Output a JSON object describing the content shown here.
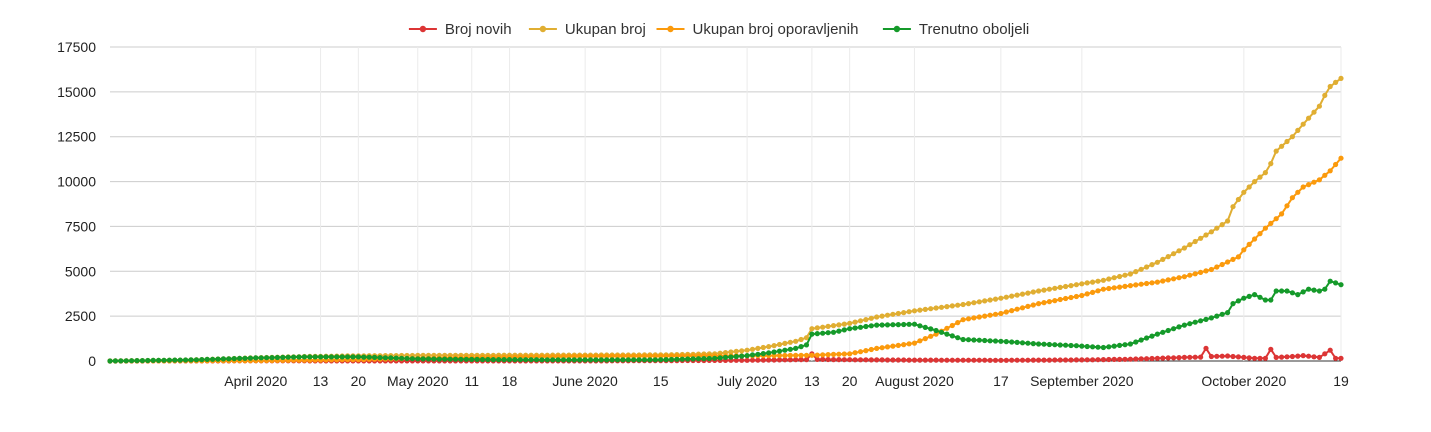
{
  "chart_data": {
    "type": "line",
    "x_start": "2020-03-05",
    "x_end": "2020-10-19",
    "xlim": [
      "2020-03-05",
      "2020-10-19"
    ],
    "ylim": [
      0,
      17500
    ],
    "y_ticks": [
      0,
      2500,
      5000,
      7500,
      10000,
      12500,
      15000,
      17500
    ],
    "y_tick_labels": [
      "0",
      "2500",
      "5000",
      "7500",
      "10000",
      "12500",
      "15000",
      "17500"
    ],
    "x_ticks": [
      {
        "date": "2020-04-01",
        "label": "April 2020"
      },
      {
        "date": "2020-04-13",
        "label": "13"
      },
      {
        "date": "2020-04-20",
        "label": "20"
      },
      {
        "date": "2020-05-01",
        "label": "May 2020"
      },
      {
        "date": "2020-05-11",
        "label": "11"
      },
      {
        "date": "2020-05-18",
        "label": "18"
      },
      {
        "date": "2020-06-01",
        "label": "June 2020"
      },
      {
        "date": "2020-06-15",
        "label": "15"
      },
      {
        "date": "2020-07-01",
        "label": "July 2020"
      },
      {
        "date": "2020-07-13",
        "label": "13"
      },
      {
        "date": "2020-07-20",
        "label": "20"
      },
      {
        "date": "2020-08-01",
        "label": "August 2020"
      },
      {
        "date": "2020-08-17",
        "label": "17"
      },
      {
        "date": "2020-09-01",
        "label": "September 2020"
      },
      {
        "date": "2020-10-01",
        "label": "October 2020"
      },
      {
        "date": "2020-10-19",
        "label": "19"
      }
    ],
    "grid": true,
    "legend_position": "top",
    "series": [
      {
        "name": "Broj novih",
        "color": "#dc3535",
        "points": [
          [
            "2020-03-05",
            0
          ],
          [
            "2020-04-01",
            10
          ],
          [
            "2020-05-01",
            5
          ],
          [
            "2020-06-01",
            3
          ],
          [
            "2020-07-01",
            40
          ],
          [
            "2020-07-12",
            80
          ],
          [
            "2020-07-13",
            400
          ],
          [
            "2020-07-14",
            90
          ],
          [
            "2020-07-20",
            70
          ],
          [
            "2020-08-01",
            50
          ],
          [
            "2020-08-17",
            40
          ],
          [
            "2020-09-01",
            60
          ],
          [
            "2020-09-10",
            100
          ],
          [
            "2020-09-15",
            150
          ],
          [
            "2020-09-20",
            200
          ],
          [
            "2020-09-23",
            220
          ],
          [
            "2020-09-24",
            700
          ],
          [
            "2020-09-25",
            250
          ],
          [
            "2020-09-28",
            280
          ],
          [
            "2020-10-01",
            200
          ],
          [
            "2020-10-03",
            150
          ],
          [
            "2020-10-05",
            150
          ],
          [
            "2020-10-06",
            650
          ],
          [
            "2020-10-07",
            200
          ],
          [
            "2020-10-10",
            250
          ],
          [
            "2020-10-12",
            300
          ],
          [
            "2020-10-15",
            200
          ],
          [
            "2020-10-17",
            600
          ],
          [
            "2020-10-18",
            150
          ],
          [
            "2020-10-19",
            150
          ]
        ]
      },
      {
        "name": "Ukupan broj",
        "color": "#e0ae32",
        "points": [
          [
            "2020-03-05",
            0
          ],
          [
            "2020-03-20",
            60
          ],
          [
            "2020-04-01",
            180
          ],
          [
            "2020-04-10",
            250
          ],
          [
            "2020-04-20",
            290
          ],
          [
            "2020-05-01",
            310
          ],
          [
            "2020-05-15",
            320
          ],
          [
            "2020-06-01",
            330
          ],
          [
            "2020-06-15",
            340
          ],
          [
            "2020-06-25",
            400
          ],
          [
            "2020-07-01",
            600
          ],
          [
            "2020-07-05",
            800
          ],
          [
            "2020-07-10",
            1100
          ],
          [
            "2020-07-12",
            1300
          ],
          [
            "2020-07-13",
            1800
          ],
          [
            "2020-07-20",
            2100
          ],
          [
            "2020-07-25",
            2450
          ],
          [
            "2020-08-01",
            2800
          ],
          [
            "2020-08-10",
            3150
          ],
          [
            "2020-08-17",
            3500
          ],
          [
            "2020-08-24",
            3900
          ],
          [
            "2020-09-01",
            4300
          ],
          [
            "2020-09-05",
            4500
          ],
          [
            "2020-09-10",
            4850
          ],
          [
            "2020-09-15",
            5500
          ],
          [
            "2020-09-20",
            6300
          ],
          [
            "2020-09-25",
            7200
          ],
          [
            "2020-09-28",
            7800
          ],
          [
            "2020-09-29",
            8600
          ],
          [
            "2020-10-01",
            9400
          ],
          [
            "2020-10-03",
            10000
          ],
          [
            "2020-10-05",
            10500
          ],
          [
            "2020-10-06",
            11000
          ],
          [
            "2020-10-07",
            11700
          ],
          [
            "2020-10-10",
            12500
          ],
          [
            "2020-10-12",
            13200
          ],
          [
            "2020-10-15",
            14200
          ],
          [
            "2020-10-16",
            14800
          ],
          [
            "2020-10-17",
            15300
          ],
          [
            "2020-10-19",
            15750
          ]
        ]
      },
      {
        "name": "Ukupan broj oporavljenih",
        "color": "#fb9a0c",
        "points": [
          [
            "2020-03-05",
            0
          ],
          [
            "2020-04-01",
            20
          ],
          [
            "2020-04-20",
            80
          ],
          [
            "2020-05-01",
            150
          ],
          [
            "2020-06-01",
            260
          ],
          [
            "2020-07-01",
            290
          ],
          [
            "2020-07-13",
            320
          ],
          [
            "2020-07-20",
            400
          ],
          [
            "2020-07-25",
            700
          ],
          [
            "2020-08-01",
            1000
          ],
          [
            "2020-08-05",
            1500
          ],
          [
            "2020-08-10",
            2300
          ],
          [
            "2020-08-17",
            2650
          ],
          [
            "2020-08-24",
            3200
          ],
          [
            "2020-09-01",
            3650
          ],
          [
            "2020-09-05",
            4000
          ],
          [
            "2020-09-10",
            4200
          ],
          [
            "2020-09-15",
            4400
          ],
          [
            "2020-09-20",
            4700
          ],
          [
            "2020-09-25",
            5100
          ],
          [
            "2020-09-30",
            5800
          ],
          [
            "2020-10-01",
            6200
          ],
          [
            "2020-10-05",
            7400
          ],
          [
            "2020-10-08",
            8200
          ],
          [
            "2020-10-10",
            9100
          ],
          [
            "2020-10-12",
            9700
          ],
          [
            "2020-10-15",
            10100
          ],
          [
            "2020-10-17",
            10600
          ],
          [
            "2020-10-19",
            11300
          ]
        ]
      },
      {
        "name": "Trenutno oboljeli",
        "color": "#159a2a",
        "points": [
          [
            "2020-03-05",
            0
          ],
          [
            "2020-03-20",
            60
          ],
          [
            "2020-04-01",
            170
          ],
          [
            "2020-04-10",
            230
          ],
          [
            "2020-04-20",
            230
          ],
          [
            "2020-05-01",
            120
          ],
          [
            "2020-05-15",
            80
          ],
          [
            "2020-06-01",
            60
          ],
          [
            "2020-06-15",
            70
          ],
          [
            "2020-06-25",
            150
          ],
          [
            "2020-07-01",
            300
          ],
          [
            "2020-07-05",
            450
          ],
          [
            "2020-07-10",
            700
          ],
          [
            "2020-07-12",
            900
          ],
          [
            "2020-07-13",
            1500
          ],
          [
            "2020-07-17",
            1600
          ],
          [
            "2020-07-20",
            1800
          ],
          [
            "2020-07-25",
            2000
          ],
          [
            "2020-08-01",
            2050
          ],
          [
            "2020-08-05",
            1700
          ],
          [
            "2020-08-10",
            1200
          ],
          [
            "2020-08-17",
            1100
          ],
          [
            "2020-08-24",
            950
          ],
          [
            "2020-08-31",
            850
          ],
          [
            "2020-09-05",
            750
          ],
          [
            "2020-09-10",
            950
          ],
          [
            "2020-09-15",
            1500
          ],
          [
            "2020-09-20",
            2000
          ],
          [
            "2020-09-25",
            2400
          ],
          [
            "2020-09-28",
            2700
          ],
          [
            "2020-09-29",
            3200
          ],
          [
            "2020-10-01",
            3500
          ],
          [
            "2020-10-03",
            3700
          ],
          [
            "2020-10-05",
            3400
          ],
          [
            "2020-10-06",
            3400
          ],
          [
            "2020-10-07",
            3900
          ],
          [
            "2020-10-09",
            3900
          ],
          [
            "2020-10-11",
            3700
          ],
          [
            "2020-10-13",
            4000
          ],
          [
            "2020-10-15",
            3900
          ],
          [
            "2020-10-16",
            4000
          ],
          [
            "2020-10-17",
            4450
          ],
          [
            "2020-10-19",
            4250
          ]
        ]
      }
    ]
  }
}
